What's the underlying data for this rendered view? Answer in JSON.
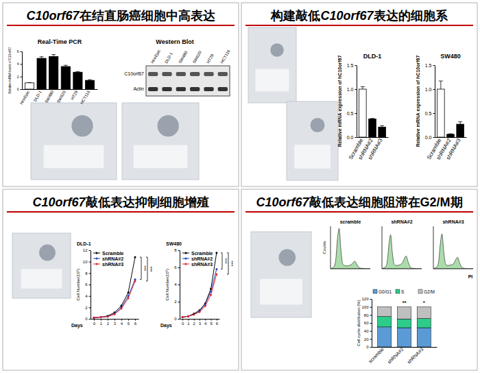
{
  "panel_titles": [
    "C10orf67在结直肠癌细胞中高表达",
    "构建敲低C10orf67表达的细胞系",
    "C10orf67敲低表达抑制细胞增殖",
    "C10orf67敲低表达细胞阻滞在G2/M期"
  ],
  "western_blot": {
    "title": "Western Blot",
    "lanes": [
      "HcoEpic",
      "DLD-1",
      "SW480",
      "SW620",
      "HT29",
      "HCT116"
    ],
    "rows": [
      "C10orf67",
      "Actin"
    ]
  },
  "chart_data": [
    {
      "type": "bar",
      "title": "Real-Time PCR",
      "y_label": "Relative mRNA levels of C10orf67",
      "categories": [
        "HcoEpic",
        "DLD-1",
        "SW480",
        "SW620",
        "HT29",
        "HCT116"
      ],
      "values": [
        1,
        4.9,
        5.2,
        3.6,
        2.7,
        1.4
      ],
      "errors": [
        0.05,
        0.25,
        0.3,
        0.2,
        0.1,
        0.1
      ],
      "colors": [
        "#ffffff",
        "#000000",
        "#000000",
        "#000000",
        "#000000",
        "#000000"
      ],
      "ylim": [
        0,
        6
      ],
      "yticks": [
        0,
        2,
        4,
        6
      ]
    },
    {
      "type": "bar",
      "title": "DLD-1",
      "y_label": "Relative mRNA expression of hC10orf67",
      "categories": [
        "Scramble",
        "shRNA#2",
        "shRNA#3"
      ],
      "values": [
        1.0,
        0.38,
        0.21
      ],
      "errors": [
        0.05,
        0.01,
        0.03
      ],
      "colors": [
        "#ffffff",
        "#000000",
        "#000000"
      ],
      "ylim": [
        0,
        1.5
      ],
      "yticks": [
        {
          "value": 0,
          "label": "0.0"
        },
        {
          "value": 0.5,
          "label": "0.5"
        },
        {
          "value": 1,
          "label": "1.0"
        },
        {
          "value": 1.5,
          "label": "1.5"
        }
      ]
    },
    {
      "type": "bar",
      "title": "SW480",
      "y_label": "Relative mRNA expression of hC10orf67",
      "categories": [
        "Scramble",
        "shRNA#2",
        "shRNA#3"
      ],
      "values": [
        1.0,
        0.06,
        0.27
      ],
      "errors": [
        0.17,
        0.01,
        0.05
      ],
      "colors": [
        "#ffffff",
        "#000000",
        "#000000"
      ],
      "ylim": [
        0,
        1.5
      ],
      "yticks": [
        {
          "value": 0,
          "label": "0.0"
        },
        {
          "value": 0.5,
          "label": "0.5"
        },
        {
          "value": 1,
          "label": "1.0"
        },
        {
          "value": 1.5,
          "label": "1.5"
        }
      ]
    },
    {
      "type": "line",
      "title": "DLD-1",
      "x_label": "Days",
      "y_label": "Cell Number(10⁵)",
      "x": [
        0,
        1,
        2,
        3,
        4,
        5,
        6
      ],
      "series": [
        {
          "name": "Scramble",
          "color": "#000000",
          "values": [
            0.2,
            0.3,
            0.5,
            1.1,
            2.3,
            4.6,
            10.8
          ]
        },
        {
          "name": "shRNA#2",
          "color": "#1f3fbf",
          "values": [
            0.2,
            0.3,
            0.4,
            0.9,
            2.0,
            4.0,
            6.9
          ]
        },
        {
          "name": "shRNA#3",
          "color": "#e0202a",
          "values": [
            0.2,
            0.3,
            0.4,
            0.8,
            1.8,
            3.6,
            6.6
          ]
        }
      ],
      "significance": [
        "***",
        "***"
      ],
      "xlim": [
        -0.5,
        6.5
      ],
      "xticks": [
        0,
        1,
        2,
        3,
        4,
        5,
        6
      ],
      "ylim": [
        0,
        12
      ],
      "yticks": [
        0,
        2,
        4,
        6,
        8,
        10,
        12
      ],
      "legend": "upper left",
      "marker": "circle"
    },
    {
      "type": "line",
      "title": "SW480",
      "x_label": "Days",
      "y_label": "Cell Number(10⁵)",
      "x": [
        0,
        1,
        2,
        3,
        4,
        5,
        6
      ],
      "series": [
        {
          "name": "Scramble",
          "color": "#000000",
          "values": [
            0.2,
            0.3,
            0.6,
            1.0,
            1.8,
            3.5,
            7.7
          ]
        },
        {
          "name": "shRNA#2",
          "color": "#1f3fbf",
          "values": [
            0.2,
            0.3,
            0.5,
            0.9,
            1.7,
            3.2,
            5.8
          ]
        },
        {
          "name": "shRNA#3",
          "color": "#e0202a",
          "values": [
            0.2,
            0.3,
            0.5,
            0.8,
            1.5,
            2.8,
            5.2
          ]
        }
      ],
      "significance": [
        "***",
        "***"
      ],
      "xlim": [
        -0.5,
        6.5
      ],
      "xticks": [
        0,
        1,
        2,
        3,
        4,
        5,
        6
      ],
      "ylim": [
        0,
        8
      ],
      "yticks": [
        0,
        2,
        4,
        6,
        8
      ],
      "legend": "upper left",
      "marker": "circle"
    },
    {
      "type": "area",
      "x_label": "PI",
      "y_label": "Counts",
      "tick_labels": false,
      "color": "#8fd18f",
      "x": [
        0,
        1,
        2,
        3,
        4,
        5,
        6,
        7,
        8,
        9,
        10,
        11,
        12,
        13,
        14,
        15,
        16,
        17,
        18,
        19,
        20,
        21,
        22,
        23
      ],
      "series": [
        {
          "name": "scramble",
          "values": [
            0,
            2,
            5,
            20,
            70,
            95,
            45,
            12,
            8,
            7,
            7,
            8,
            10,
            14,
            18,
            12,
            5,
            2,
            1,
            1,
            0,
            0,
            0,
            0
          ]
        },
        {
          "name": "shRNA#2",
          "values": [
            0,
            2,
            4,
            15,
            55,
            80,
            38,
            11,
            8,
            8,
            9,
            11,
            15,
            24,
            30,
            18,
            7,
            2,
            1,
            1,
            0,
            0,
            0,
            0
          ]
        },
        {
          "name": "shRNA#3",
          "values": [
            0,
            2,
            4,
            16,
            58,
            82,
            40,
            12,
            8,
            8,
            9,
            10,
            14,
            22,
            27,
            16,
            6,
            2,
            1,
            0,
            0,
            0,
            0,
            0
          ]
        }
      ],
      "xlim": [
        0,
        23
      ],
      "ylim": [
        0,
        100
      ]
    },
    {
      "type": "bar",
      "stacked": true,
      "y_label": "Cell cycle distribution (%)",
      "categories": [
        "scramble",
        "shRNA#2",
        "shRNA#3"
      ],
      "series": [
        {
          "name": "G0/G1",
          "color": "#5b9bd5",
          "values": [
            50,
            48,
            48
          ]
        },
        {
          "name": "S",
          "color": "#2ecc8a",
          "values": [
            26,
            22,
            23
          ]
        },
        {
          "name": "G2/M",
          "color": "#bfbfbf",
          "values": [
            24,
            30,
            29
          ]
        }
      ],
      "significance": [
        null,
        "**",
        "*"
      ],
      "ylim": [
        0,
        120
      ],
      "yticks": [
        0,
        20,
        40,
        60,
        80,
        100,
        120
      ],
      "legend": "top"
    }
  ]
}
